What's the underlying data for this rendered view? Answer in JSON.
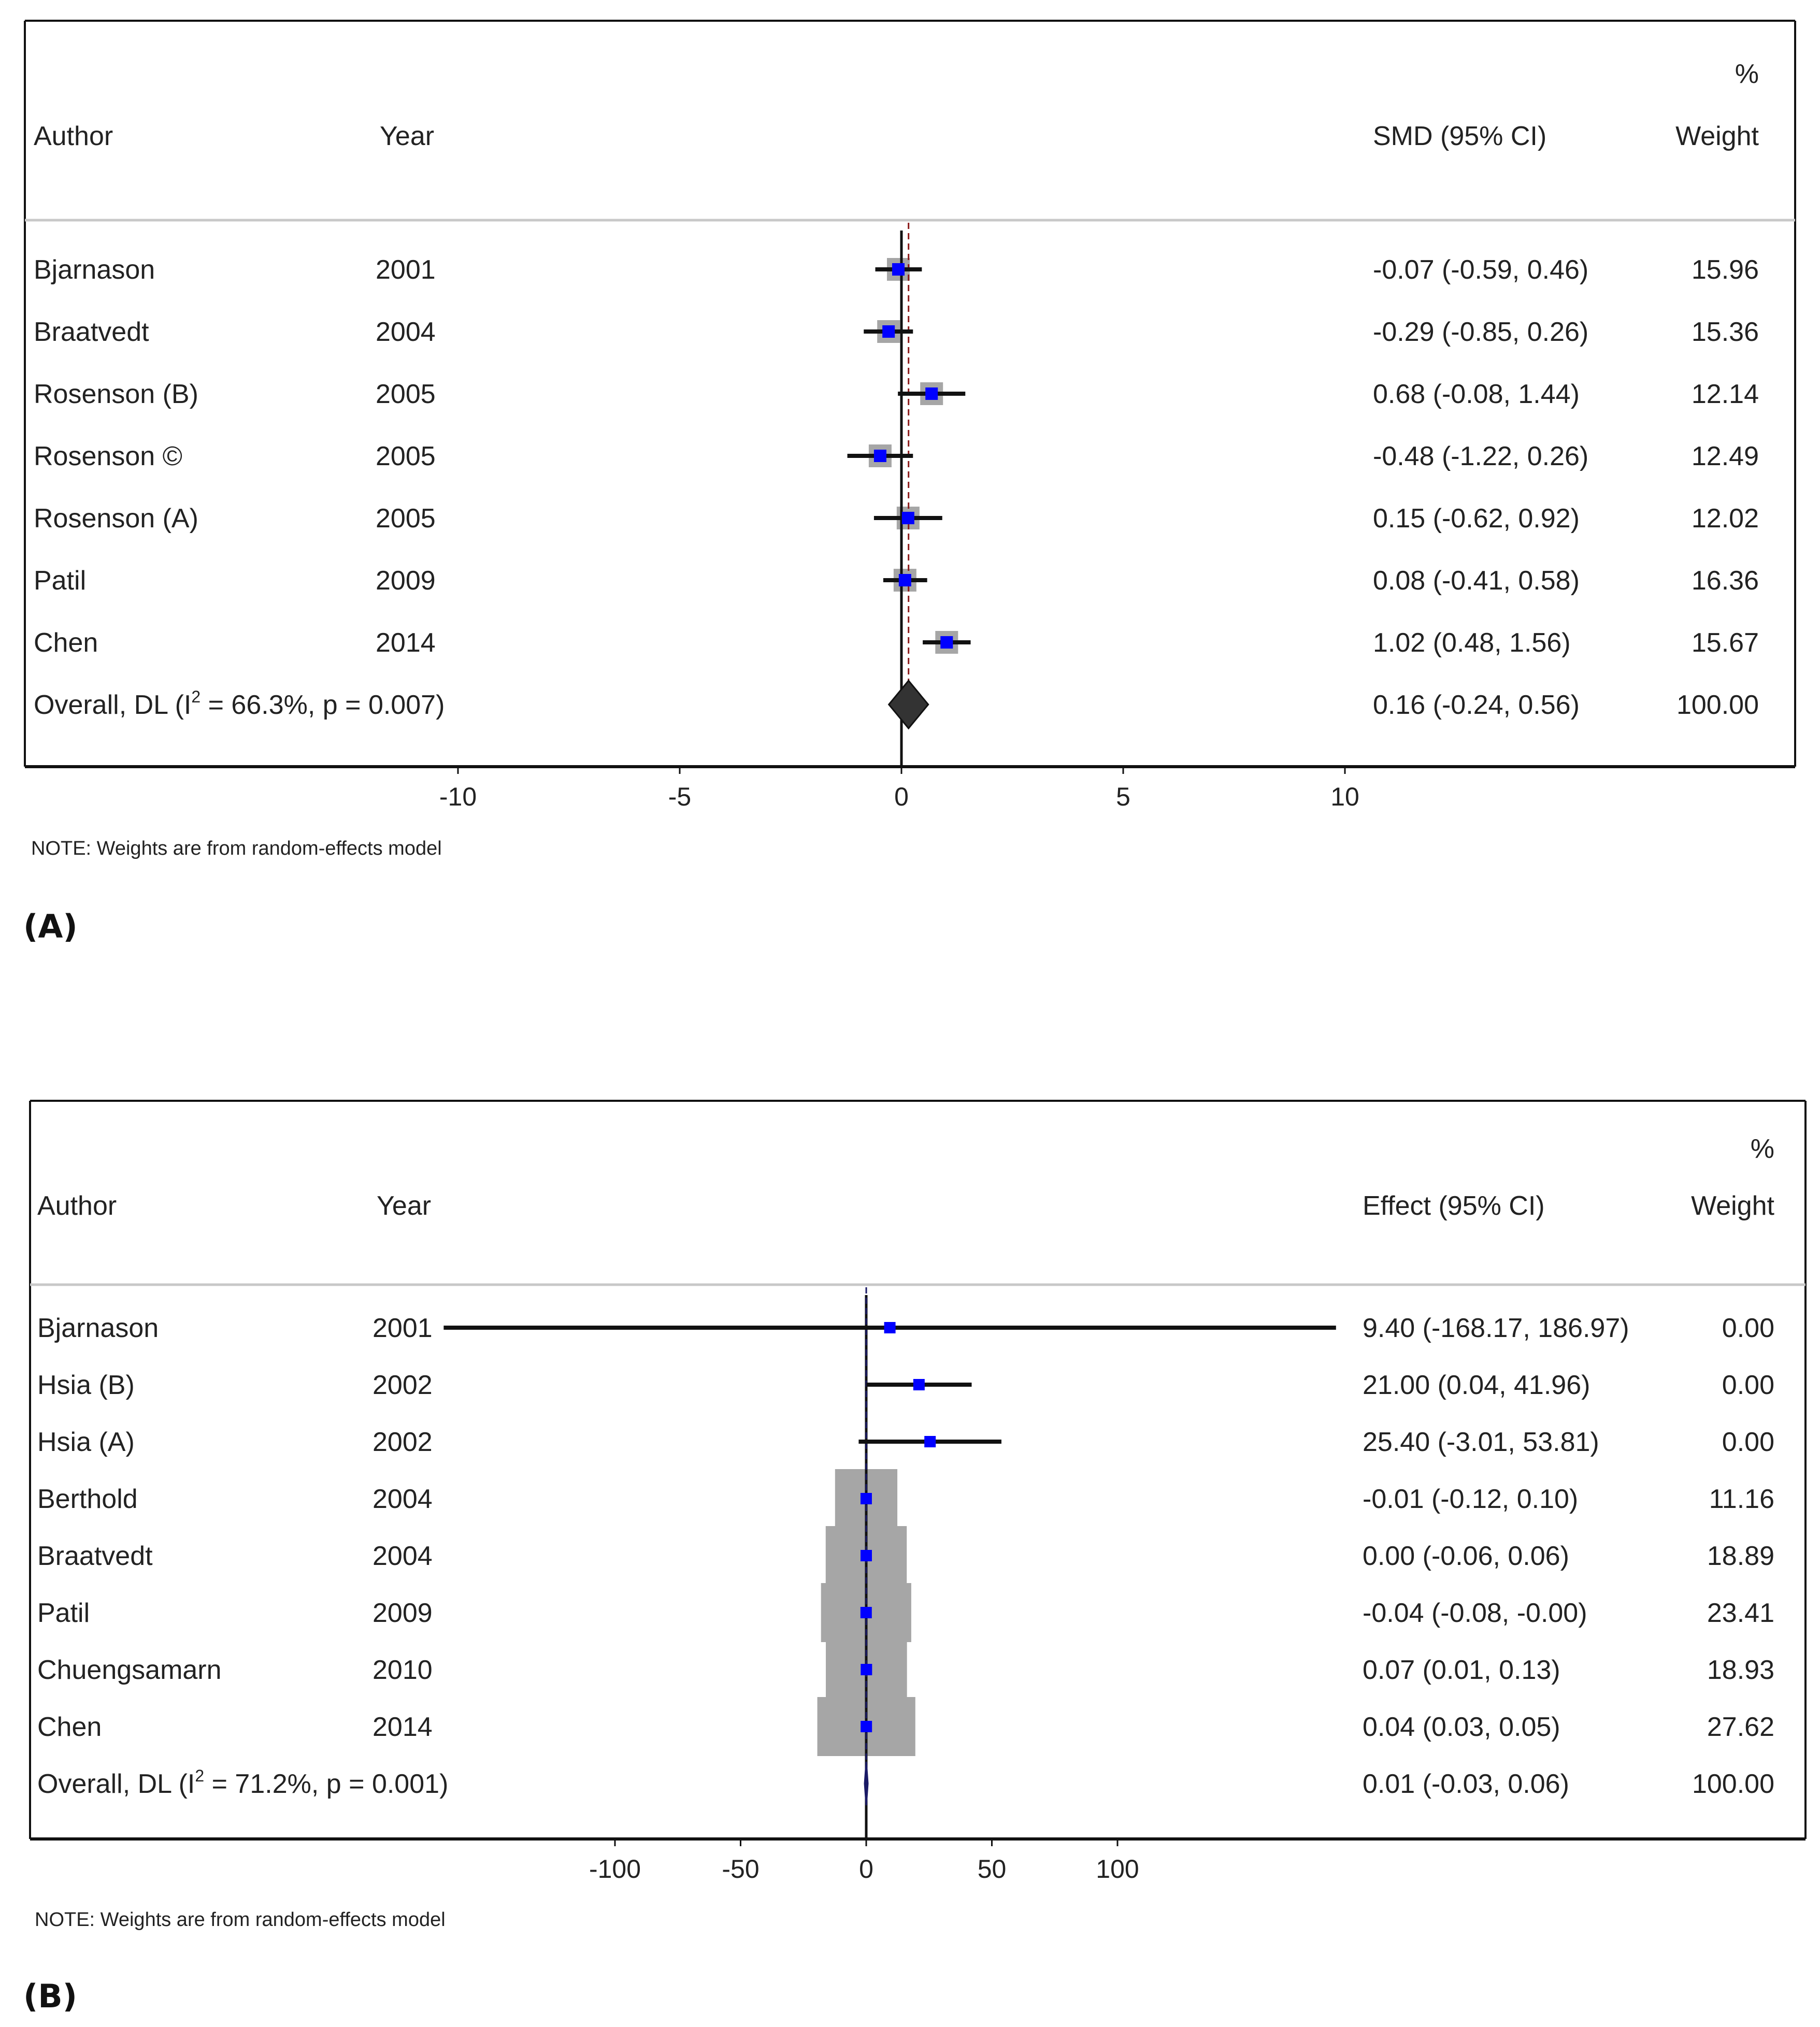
{
  "panels": [
    {
      "label": "(A)",
      "headers": {
        "author": "Author",
        "year": "Year",
        "effect": "SMD (95% CI)",
        "weight_top": "%",
        "weight": "Weight"
      },
      "note": "NOTE: Weights are from random-effects model",
      "colors": {
        "point": "#0000ff",
        "box": "#a6a6a6",
        "diamond": "#333333",
        "refline": "#8b1a1a"
      },
      "chart_data": {
        "type": "forest",
        "xlim": [
          -12,
          12
        ],
        "xticks": [
          -10,
          -5,
          0,
          5,
          10
        ],
        "xtick_labels": [
          "-10",
          "-5",
          "0",
          "5",
          "10"
        ],
        "studies": [
          {
            "author": "Bjarnason",
            "year": "2001",
            "est": -0.07,
            "lo": -0.59,
            "hi": 0.46,
            "ci_text": "-0.07 (-0.59, 0.46)",
            "weight": "15.96"
          },
          {
            "author": "Braatvedt",
            "year": "2004",
            "est": -0.29,
            "lo": -0.85,
            "hi": 0.26,
            "ci_text": "-0.29 (-0.85, 0.26)",
            "weight": "15.36"
          },
          {
            "author": "Rosenson (B)",
            "year": "2005",
            "est": 0.68,
            "lo": -0.08,
            "hi": 1.44,
            "ci_text": "0.68 (-0.08, 1.44)",
            "weight": "12.14"
          },
          {
            "author": "Rosenson ©",
            "year": "2005",
            "est": -0.48,
            "lo": -1.22,
            "hi": 0.26,
            "ci_text": "-0.48 (-1.22, 0.26)",
            "weight": "12.49"
          },
          {
            "author": "Rosenson (A)",
            "year": "2005",
            "est": 0.15,
            "lo": -0.62,
            "hi": 0.92,
            "ci_text": "0.15 (-0.62, 0.92)",
            "weight": "12.02"
          },
          {
            "author": "Patil",
            "year": "2009",
            "est": 0.08,
            "lo": -0.41,
            "hi": 0.58,
            "ci_text": "0.08 (-0.41, 0.58)",
            "weight": "16.36"
          },
          {
            "author": "Chen",
            "year": "2014",
            "est": 1.02,
            "lo": 0.48,
            "hi": 1.56,
            "ci_text": "1.02 (0.48, 1.56)",
            "weight": "15.67"
          }
        ],
        "overall": {
          "label_pre": "Overall, DL (I",
          "label_sup": "2",
          "label_post": " = 66.3%, p = 0.007)",
          "est": 0.16,
          "lo": -0.24,
          "hi": 0.56,
          "ci_text": "0.16 (-0.24, 0.56)",
          "weight": "100.00"
        }
      }
    },
    {
      "label": "(B)",
      "headers": {
        "author": "Author",
        "year": "Year",
        "effect": "Effect (95% CI)",
        "weight_top": "%",
        "weight": "Weight"
      },
      "note": "NOTE: Weights are from random-effects model",
      "colors": {
        "point": "#0000ff",
        "box": "#a6a6a6",
        "diamond": "#1a1a66",
        "refline": "#1a1a66"
      },
      "chart_data": {
        "type": "forest",
        "xlim": [
          -200,
          200
        ],
        "xticks": [
          -100,
          -50,
          0,
          50,
          100
        ],
        "xtick_labels": [
          "-100",
          "-50",
          "0",
          "50",
          "100"
        ],
        "studies": [
          {
            "author": "Bjarnason",
            "year": "2001",
            "est": 9.4,
            "lo": -168.17,
            "hi": 186.97,
            "ci_text": "9.40 (-168.17, 186.97)",
            "weight": "0.00"
          },
          {
            "author": "Hsia (B)",
            "year": "2002",
            "est": 21.0,
            "lo": 0.04,
            "hi": 41.96,
            "ci_text": "21.00 (0.04, 41.96)",
            "weight": "0.00"
          },
          {
            "author": "Hsia (A)",
            "year": "2002",
            "est": 25.4,
            "lo": -3.01,
            "hi": 53.81,
            "ci_text": "25.40 (-3.01, 53.81)",
            "weight": "0.00"
          },
          {
            "author": "Berthold",
            "year": "2004",
            "est": -0.01,
            "lo": -0.12,
            "hi": 0.1,
            "ci_text": "-0.01 (-0.12, 0.10)",
            "weight": "11.16"
          },
          {
            "author": "Braatvedt",
            "year": "2004",
            "est": 0.0,
            "lo": -0.06,
            "hi": 0.06,
            "ci_text": "0.00 (-0.06, 0.06)",
            "weight": "18.89"
          },
          {
            "author": "Patil",
            "year": "2009",
            "est": -0.04,
            "lo": -0.08,
            "hi": -0.0,
            "ci_text": "-0.04 (-0.08, -0.00)",
            "weight": "23.41"
          },
          {
            "author": "Chuengsamarn",
            "year": "2010",
            "est": 0.07,
            "lo": 0.01,
            "hi": 0.13,
            "ci_text": "0.07 (0.01, 0.13)",
            "weight": "18.93"
          },
          {
            "author": "Chen",
            "year": "2014",
            "est": 0.04,
            "lo": 0.03,
            "hi": 0.05,
            "ci_text": "0.04 (0.03, 0.05)",
            "weight": "27.62"
          }
        ],
        "overall": {
          "label_pre": "Overall, DL (I",
          "label_sup": "2",
          "label_post": " = 71.2%, p = 0.001)",
          "est": 0.01,
          "lo": -0.03,
          "hi": 0.06,
          "ci_text": "0.01 (-0.03, 0.06)",
          "weight": "100.00"
        }
      }
    }
  ]
}
